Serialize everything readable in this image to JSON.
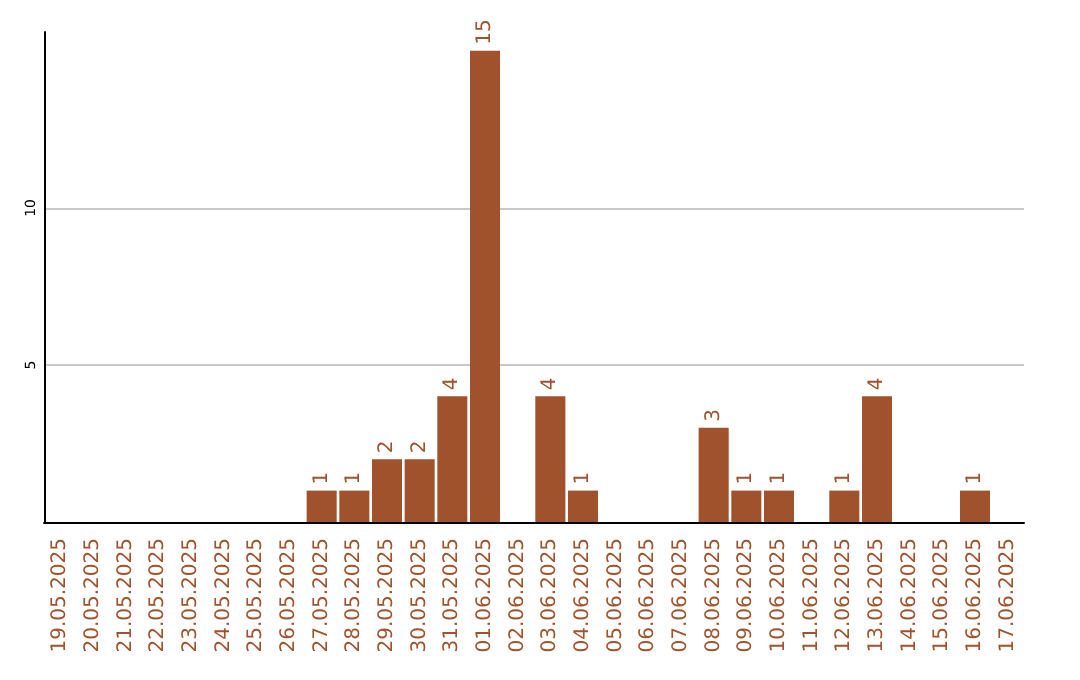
{
  "chart_data": {
    "type": "bar",
    "categories": [
      "19.05.2025",
      "20.05.2025",
      "21.05.2025",
      "22.05.2025",
      "23.05.2025",
      "24.05.2025",
      "25.05.2025",
      "26.05.2025",
      "27.05.2025",
      "28.05.2025",
      "29.05.2025",
      "30.05.2025",
      "31.05.2025",
      "01.06.2025",
      "02.06.2025",
      "03.06.2025",
      "04.06.2025",
      "05.06.2025",
      "06.06.2025",
      "07.06.2025",
      "08.06.2025",
      "09.06.2025",
      "10.06.2025",
      "11.06.2025",
      "12.06.2025",
      "13.06.2025",
      "14.06.2025",
      "15.06.2025",
      "16.06.2025",
      "17.06.2025"
    ],
    "values": [
      0,
      0,
      0,
      0,
      0,
      0,
      0,
      0,
      1,
      1,
      2,
      2,
      4,
      15,
      0,
      4,
      1,
      0,
      0,
      0,
      3,
      1,
      1,
      0,
      1,
      4,
      0,
      0,
      1,
      0
    ],
    "value_labels": [
      null,
      null,
      null,
      null,
      null,
      null,
      null,
      null,
      "1",
      "1",
      "2",
      "2",
      "4",
      "15",
      null,
      "4",
      "1",
      null,
      null,
      null,
      "3",
      "1",
      "1",
      null,
      "1",
      "4",
      null,
      null,
      "1",
      null
    ],
    "color": "#a0522d",
    "ylim": [
      0,
      15.6
    ],
    "yticks": [
      {
        "value": 0,
        "label": null
      },
      5,
      10
    ],
    "grid": "y"
  }
}
